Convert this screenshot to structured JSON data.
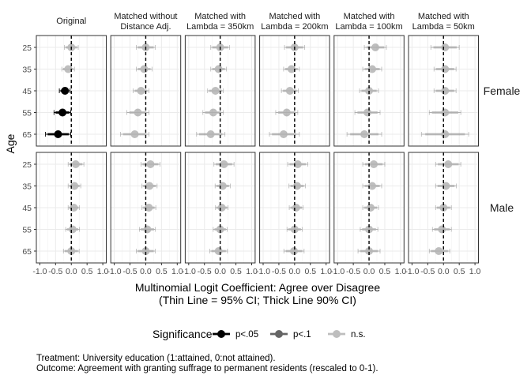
{
  "chart_data": {
    "type": "scatter",
    "panel_titles": [
      [
        "Original"
      ],
      [
        "Matched without",
        "Distance Adj."
      ],
      [
        "Matched with",
        "Lambda = 350km"
      ],
      [
        "Matched with",
        "Lambda = 200km"
      ],
      [
        "Matched with",
        "Lambda = 100km"
      ],
      [
        "Matched with",
        "Lambda = 50km"
      ]
    ],
    "row_labels": [
      "Female",
      "Male"
    ],
    "ylabel": "Age",
    "xlabel_line1": "Multinomial Logit Coefficient: Agree over Disagree",
    "xlabel_line2": "(Thin Line = 95% CI; Thick Line 90% CI)",
    "categories": [
      "25",
      "35",
      "45",
      "55",
      "65"
    ],
    "xlim": [
      -1.0,
      1.0
    ],
    "xticks": [
      "-1.0",
      "-0.5",
      "0.0",
      "0.5",
      "1.0"
    ],
    "reference_line": 0,
    "legend": {
      "title": "Significance",
      "position": "bottom",
      "items": [
        {
          "label": "p<.05",
          "color": "#000000",
          "opacity": 1.0
        },
        {
          "label": "p<.1",
          "color": "#000000",
          "opacity": 0.6
        },
        {
          "label": "n.s.",
          "color": "#000000",
          "opacity": 0.25
        }
      ]
    },
    "points": [
      {
        "panel": 0,
        "row": 0,
        "age": "25",
        "est": 0.0,
        "lo95": -0.22,
        "hi95": 0.22,
        "lo90": -0.18,
        "hi90": 0.18,
        "sig": "n.s."
      },
      {
        "panel": 0,
        "row": 0,
        "age": "35",
        "est": -0.1,
        "lo95": -0.3,
        "hi95": 0.1,
        "lo90": -0.26,
        "hi90": 0.06,
        "sig": "n.s."
      },
      {
        "panel": 0,
        "row": 0,
        "age": "45",
        "est": -0.2,
        "lo95": -0.38,
        "hi95": -0.04,
        "lo90": -0.34,
        "hi90": -0.08,
        "sig": "p<.05"
      },
      {
        "panel": 0,
        "row": 0,
        "age": "55",
        "est": -0.28,
        "lo95": -0.55,
        "hi95": -0.02,
        "lo90": -0.5,
        "hi90": -0.06,
        "sig": "p<.05"
      },
      {
        "panel": 0,
        "row": 0,
        "age": "65",
        "est": -0.42,
        "lo95": -0.82,
        "hi95": -0.02,
        "lo90": -0.75,
        "hi90": -0.08,
        "sig": "p<.05"
      },
      {
        "panel": 0,
        "row": 1,
        "age": "25",
        "est": 0.14,
        "lo95": -0.1,
        "hi95": 0.4,
        "lo90": -0.06,
        "hi90": 0.35,
        "sig": "n.s."
      },
      {
        "panel": 0,
        "row": 1,
        "age": "35",
        "est": 0.1,
        "lo95": -0.1,
        "hi95": 0.3,
        "lo90": -0.06,
        "hi90": 0.26,
        "sig": "n.s."
      },
      {
        "panel": 0,
        "row": 1,
        "age": "45",
        "est": 0.08,
        "lo95": -0.1,
        "hi95": 0.26,
        "lo90": -0.07,
        "hi90": 0.23,
        "sig": "n.s."
      },
      {
        "panel": 0,
        "row": 1,
        "age": "55",
        "est": 0.04,
        "lo95": -0.18,
        "hi95": 0.26,
        "lo90": -0.14,
        "hi90": 0.22,
        "sig": "n.s."
      },
      {
        "panel": 0,
        "row": 1,
        "age": "65",
        "est": 0.0,
        "lo95": -0.25,
        "hi95": 0.25,
        "lo90": -0.21,
        "hi90": 0.21,
        "sig": "n.s."
      },
      {
        "panel": 1,
        "row": 0,
        "age": "25",
        "est": 0.0,
        "lo95": -0.3,
        "hi95": 0.3,
        "lo90": -0.25,
        "hi90": 0.25,
        "sig": "n.s."
      },
      {
        "panel": 1,
        "row": 0,
        "age": "35",
        "est": -0.05,
        "lo95": -0.3,
        "hi95": 0.2,
        "lo90": -0.25,
        "hi90": 0.15,
        "sig": "n.s."
      },
      {
        "panel": 1,
        "row": 0,
        "age": "45",
        "est": -0.15,
        "lo95": -0.4,
        "hi95": 0.1,
        "lo90": -0.35,
        "hi90": 0.05,
        "sig": "n.s."
      },
      {
        "panel": 1,
        "row": 0,
        "age": "55",
        "est": -0.25,
        "lo95": -0.6,
        "hi95": 0.1,
        "lo90": -0.52,
        "hi90": 0.02,
        "sig": "n.s."
      },
      {
        "panel": 1,
        "row": 0,
        "age": "65",
        "est": -0.35,
        "lo95": -0.8,
        "hi95": 0.1,
        "lo90": -0.72,
        "hi90": 0.02,
        "sig": "n.s."
      },
      {
        "panel": 1,
        "row": 1,
        "age": "25",
        "est": 0.15,
        "lo95": -0.15,
        "hi95": 0.45,
        "lo90": -0.1,
        "hi90": 0.4,
        "sig": "n.s."
      },
      {
        "panel": 1,
        "row": 1,
        "age": "35",
        "est": 0.12,
        "lo95": -0.12,
        "hi95": 0.36,
        "lo90": -0.08,
        "hi90": 0.32,
        "sig": "n.s."
      },
      {
        "panel": 1,
        "row": 1,
        "age": "45",
        "est": 0.1,
        "lo95": -0.12,
        "hi95": 0.32,
        "lo90": -0.08,
        "hi90": 0.28,
        "sig": "n.s."
      },
      {
        "panel": 1,
        "row": 1,
        "age": "55",
        "est": 0.05,
        "lo95": -0.2,
        "hi95": 0.3,
        "lo90": -0.16,
        "hi90": 0.26,
        "sig": "n.s."
      },
      {
        "panel": 1,
        "row": 1,
        "age": "65",
        "est": 0.0,
        "lo95": -0.3,
        "hi95": 0.3,
        "lo90": -0.25,
        "hi90": 0.25,
        "sig": "n.s."
      },
      {
        "panel": 2,
        "row": 0,
        "age": "25",
        "est": 0.0,
        "lo95": -0.3,
        "hi95": 0.3,
        "lo90": -0.25,
        "hi90": 0.25,
        "sig": "n.s."
      },
      {
        "panel": 2,
        "row": 0,
        "age": "35",
        "est": -0.05,
        "lo95": -0.3,
        "hi95": 0.2,
        "lo90": -0.25,
        "hi90": 0.15,
        "sig": "n.s."
      },
      {
        "panel": 2,
        "row": 0,
        "age": "45",
        "est": -0.15,
        "lo95": -0.4,
        "hi95": 0.1,
        "lo90": -0.35,
        "hi90": 0.05,
        "sig": "n.s."
      },
      {
        "panel": 2,
        "row": 0,
        "age": "55",
        "est": -0.22,
        "lo95": -0.55,
        "hi95": 0.1,
        "lo90": -0.48,
        "hi90": 0.03,
        "sig": "n.s."
      },
      {
        "panel": 2,
        "row": 0,
        "age": "65",
        "est": -0.3,
        "lo95": -0.75,
        "hi95": 0.15,
        "lo90": -0.67,
        "hi90": 0.07,
        "sig": "n.s."
      },
      {
        "panel": 2,
        "row": 1,
        "age": "25",
        "est": 0.12,
        "lo95": -0.2,
        "hi95": 0.44,
        "lo90": -0.14,
        "hi90": 0.38,
        "sig": "n.s."
      },
      {
        "panel": 2,
        "row": 1,
        "age": "35",
        "est": 0.08,
        "lo95": -0.16,
        "hi95": 0.32,
        "lo90": -0.12,
        "hi90": 0.28,
        "sig": "n.s."
      },
      {
        "panel": 2,
        "row": 1,
        "age": "45",
        "est": 0.05,
        "lo95": -0.15,
        "hi95": 0.25,
        "lo90": -0.12,
        "hi90": 0.22,
        "sig": "n.s."
      },
      {
        "panel": 2,
        "row": 1,
        "age": "55",
        "est": 0.0,
        "lo95": -0.22,
        "hi95": 0.22,
        "lo90": -0.18,
        "hi90": 0.18,
        "sig": "n.s."
      },
      {
        "panel": 2,
        "row": 1,
        "age": "65",
        "est": -0.05,
        "lo95": -0.33,
        "hi95": 0.23,
        "lo90": -0.28,
        "hi90": 0.18,
        "sig": "n.s."
      },
      {
        "panel": 3,
        "row": 0,
        "age": "25",
        "est": 0.0,
        "lo95": -0.32,
        "hi95": 0.32,
        "lo90": -0.27,
        "hi90": 0.27,
        "sig": "n.s."
      },
      {
        "panel": 3,
        "row": 0,
        "age": "35",
        "est": -0.1,
        "lo95": -0.35,
        "hi95": 0.15,
        "lo90": -0.3,
        "hi90": 0.1,
        "sig": "n.s."
      },
      {
        "panel": 3,
        "row": 0,
        "age": "45",
        "est": -0.15,
        "lo95": -0.42,
        "hi95": 0.12,
        "lo90": -0.37,
        "hi90": 0.07,
        "sig": "n.s."
      },
      {
        "panel": 3,
        "row": 0,
        "age": "55",
        "est": -0.25,
        "lo95": -0.6,
        "hi95": 0.1,
        "lo90": -0.52,
        "hi90": 0.02,
        "sig": "n.s."
      },
      {
        "panel": 3,
        "row": 0,
        "age": "65",
        "est": -0.35,
        "lo95": -0.8,
        "hi95": 0.15,
        "lo90": -0.72,
        "hi90": 0.05,
        "sig": "n.s."
      },
      {
        "panel": 3,
        "row": 1,
        "age": "25",
        "est": 0.1,
        "lo95": -0.22,
        "hi95": 0.42,
        "lo90": -0.16,
        "hi90": 0.36,
        "sig": "n.s."
      },
      {
        "panel": 3,
        "row": 1,
        "age": "35",
        "est": 0.08,
        "lo95": -0.18,
        "hi95": 0.34,
        "lo90": -0.13,
        "hi90": 0.29,
        "sig": "n.s."
      },
      {
        "panel": 3,
        "row": 1,
        "age": "45",
        "est": 0.05,
        "lo95": -0.17,
        "hi95": 0.27,
        "lo90": -0.13,
        "hi90": 0.23,
        "sig": "n.s."
      },
      {
        "panel": 3,
        "row": 1,
        "age": "55",
        "est": 0.0,
        "lo95": -0.24,
        "hi95": 0.24,
        "lo90": -0.2,
        "hi90": 0.2,
        "sig": "n.s."
      },
      {
        "panel": 3,
        "row": 1,
        "age": "65",
        "est": -0.02,
        "lo95": -0.34,
        "hi95": 0.3,
        "lo90": -0.28,
        "hi90": 0.24,
        "sig": "n.s."
      },
      {
        "panel": 4,
        "row": 0,
        "age": "25",
        "est": 0.2,
        "lo95": -0.15,
        "hi95": 0.55,
        "lo90": -0.08,
        "hi90": 0.48,
        "sig": "n.s."
      },
      {
        "panel": 4,
        "row": 0,
        "age": "35",
        "est": 0.1,
        "lo95": -0.2,
        "hi95": 0.4,
        "lo90": -0.14,
        "hi90": 0.34,
        "sig": "n.s."
      },
      {
        "panel": 4,
        "row": 0,
        "age": "45",
        "est": 0.0,
        "lo95": -0.3,
        "hi95": 0.3,
        "lo90": -0.24,
        "hi90": 0.24,
        "sig": "n.s."
      },
      {
        "panel": 4,
        "row": 0,
        "age": "55",
        "est": -0.05,
        "lo95": -0.45,
        "hi95": 0.35,
        "lo90": -0.37,
        "hi90": 0.27,
        "sig": "n.s."
      },
      {
        "panel": 4,
        "row": 0,
        "age": "65",
        "est": -0.15,
        "lo95": -0.7,
        "hi95": 0.4,
        "lo90": -0.6,
        "hi90": 0.3,
        "sig": "n.s."
      },
      {
        "panel": 4,
        "row": 1,
        "age": "25",
        "est": 0.15,
        "lo95": -0.2,
        "hi95": 0.5,
        "lo90": -0.13,
        "hi90": 0.43,
        "sig": "n.s."
      },
      {
        "panel": 4,
        "row": 1,
        "age": "35",
        "est": 0.1,
        "lo95": -0.2,
        "hi95": 0.4,
        "lo90": -0.14,
        "hi90": 0.34,
        "sig": "n.s."
      },
      {
        "panel": 4,
        "row": 1,
        "age": "45",
        "est": 0.05,
        "lo95": -0.2,
        "hi95": 0.3,
        "lo90": -0.15,
        "hi90": 0.25,
        "sig": "n.s."
      },
      {
        "panel": 4,
        "row": 1,
        "age": "55",
        "est": 0.0,
        "lo95": -0.28,
        "hi95": 0.28,
        "lo90": -0.22,
        "hi90": 0.22,
        "sig": "n.s."
      },
      {
        "panel": 4,
        "row": 1,
        "age": "65",
        "est": 0.0,
        "lo95": -0.35,
        "hi95": 0.35,
        "lo90": -0.28,
        "hi90": 0.28,
        "sig": "n.s."
      },
      {
        "panel": 5,
        "row": 0,
        "age": "25",
        "est": 0.05,
        "lo95": -0.4,
        "hi95": 0.5,
        "lo90": -0.32,
        "hi90": 0.42,
        "sig": "n.s."
      },
      {
        "panel": 5,
        "row": 0,
        "age": "35",
        "est": 0.05,
        "lo95": -0.3,
        "hi95": 0.4,
        "lo90": -0.24,
        "hi90": 0.34,
        "sig": "n.s."
      },
      {
        "panel": 5,
        "row": 0,
        "age": "45",
        "est": 0.05,
        "lo95": -0.3,
        "hi95": 0.4,
        "lo90": -0.24,
        "hi90": 0.34,
        "sig": "n.s."
      },
      {
        "panel": 5,
        "row": 0,
        "age": "55",
        "est": 0.05,
        "lo95": -0.45,
        "hi95": 0.55,
        "lo90": -0.37,
        "hi90": 0.47,
        "sig": "n.s."
      },
      {
        "panel": 5,
        "row": 0,
        "age": "65",
        "est": 0.05,
        "lo95": -0.7,
        "hi95": 0.8,
        "lo90": -0.58,
        "hi90": 0.68,
        "sig": "n.s."
      },
      {
        "panel": 5,
        "row": 1,
        "age": "25",
        "est": 0.15,
        "lo95": -0.25,
        "hi95": 0.55,
        "lo90": -0.18,
        "hi90": 0.48,
        "sig": "n.s."
      },
      {
        "panel": 5,
        "row": 1,
        "age": "35",
        "est": 0.08,
        "lo95": -0.25,
        "hi95": 0.41,
        "lo90": -0.19,
        "hi90": 0.35,
        "sig": "n.s."
      },
      {
        "panel": 5,
        "row": 1,
        "age": "45",
        "est": 0.0,
        "lo95": -0.25,
        "hi95": 0.25,
        "lo90": -0.21,
        "hi90": 0.21,
        "sig": "n.s."
      },
      {
        "panel": 5,
        "row": 1,
        "age": "55",
        "est": -0.05,
        "lo95": -0.35,
        "hi95": 0.25,
        "lo90": -0.3,
        "hi90": 0.2,
        "sig": "n.s."
      },
      {
        "panel": 5,
        "row": 1,
        "age": "65",
        "est": -0.15,
        "lo95": -0.45,
        "hi95": 0.2,
        "lo90": -0.4,
        "hi90": 0.14,
        "sig": "n.s."
      }
    ]
  },
  "notes": [
    "Treatment: University education (1:attained, 0:not attained).",
    "Outcome: Agreement with granting suffrage to permanent residents (rescaled to 0-1)."
  ]
}
